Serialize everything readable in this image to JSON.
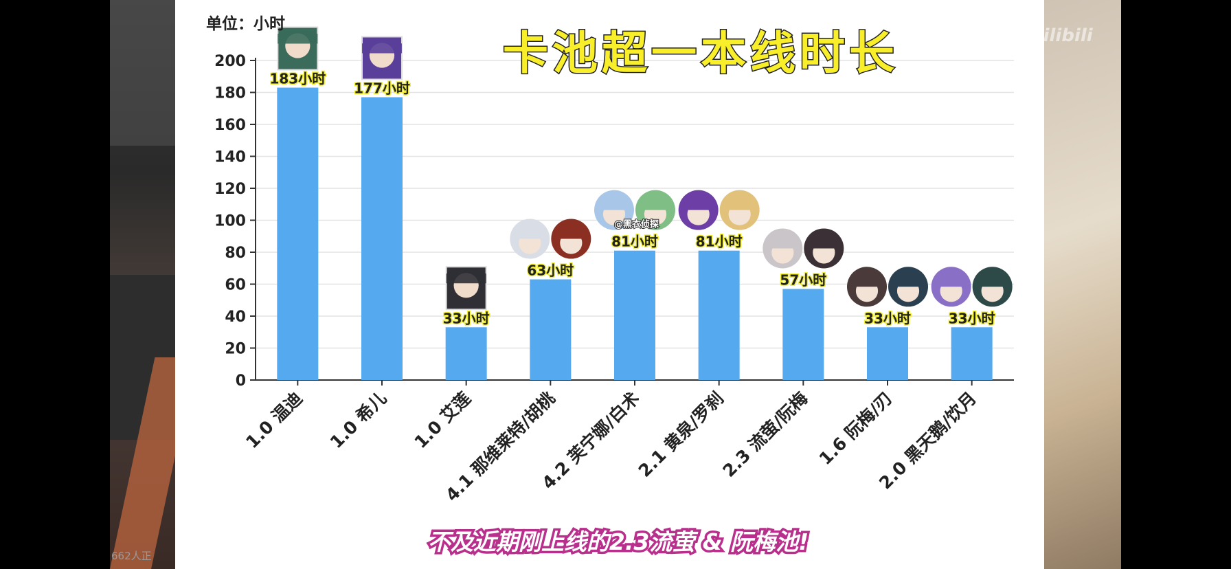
{
  "chart_data": {
    "type": "bar",
    "title": "卡池超一本线时长",
    "unit_label": "单位：小时",
    "categories": [
      "1.0 温迪",
      "1.0 希儿",
      "1.0 艾莲",
      "4.1 那维莱特/胡桃",
      "4.2 芙宁娜/白术",
      "2.1 黄泉/罗刹",
      "2.3 流萤/阮梅",
      "1.6 阮梅/刃",
      "2.0 黑天鹅/饮月"
    ],
    "values": [
      183,
      177,
      33,
      63,
      81,
      81,
      57,
      33,
      33
    ],
    "data_labels": [
      "183小时",
      "177小时",
      "33小时",
      "63小时",
      "81小时",
      "81小时",
      "57小时",
      "33小时",
      "33小时"
    ],
    "ylim": [
      0,
      200
    ],
    "yticks": [
      0,
      20,
      40,
      60,
      80,
      100,
      120,
      140,
      160,
      180,
      200
    ],
    "bar_color": "#55a9ef",
    "grid": true,
    "icons": [
      [
        "venti-avatar-icon"
      ],
      [
        "seele-avatar-icon"
      ],
      [
        "ellen-avatar-icon"
      ],
      [
        "neuvillette-avatar-icon",
        "hutao-avatar-icon"
      ],
      [
        "furina-avatar-icon",
        "baizhu-avatar-icon"
      ],
      [
        "acheron-avatar-icon",
        "luocha-avatar-icon"
      ],
      [
        "firefly-avatar-icon",
        "ruanmei-avatar-icon"
      ],
      [
        "ruanmei-avatar-icon",
        "blade-avatar-icon"
      ],
      [
        "blackswan-avatar-icon",
        "imbibitor-avatar-icon"
      ]
    ],
    "icon_tag": "@黑衣侦探"
  },
  "caption": "不及近期刚上线的2.3流萤 & 阮梅池!",
  "overlay": {
    "viewer_count": "662人正",
    "watermark": "bilibili"
  }
}
